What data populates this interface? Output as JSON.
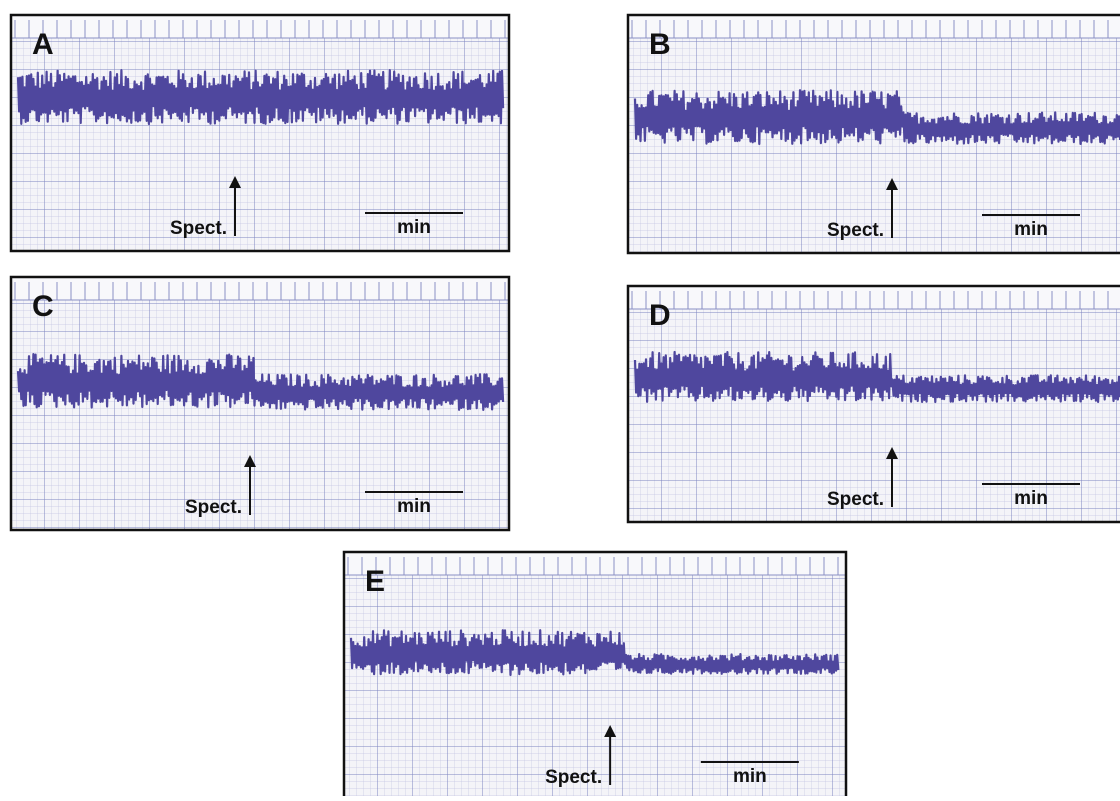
{
  "panels": [
    {
      "label": "A",
      "arrow_label": "Spect.",
      "scale_label": "min"
    },
    {
      "label": "B",
      "arrow_label": "Spect.",
      "scale_label": "min"
    },
    {
      "label": "C",
      "arrow_label": "Spect.",
      "scale_label": "min"
    },
    {
      "label": "D",
      "arrow_label": "Spect.",
      "scale_label": "min"
    },
    {
      "label": "E",
      "arrow_label": "Spect.",
      "scale_label": "min"
    }
  ]
}
